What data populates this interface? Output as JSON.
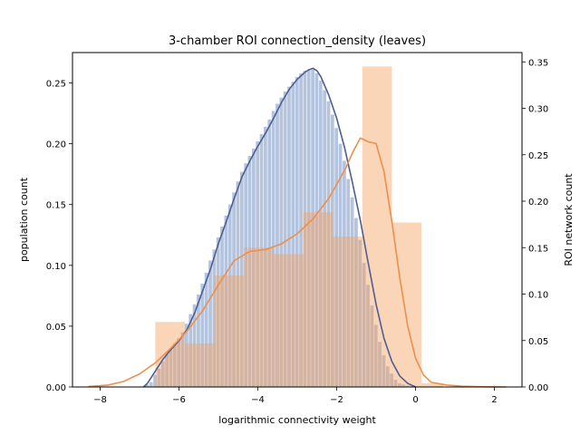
{
  "chart_data": {
    "type": "bar",
    "title": "3-chamber ROI connection_density (leaves)",
    "xlabel": "logarithmic connectivity weight",
    "ylabel": "population count",
    "y2label": "ROI network count",
    "xlim": [
      -8.7,
      2.7
    ],
    "ylim": [
      0,
      0.275
    ],
    "y2lim": [
      0,
      0.36
    ],
    "xticks": [
      -8,
      -6,
      -4,
      -2,
      0,
      2
    ],
    "xtick_labels": [
      "−8",
      "−6",
      "−4",
      "−2",
      "0",
      "2"
    ],
    "yticks": [
      0.0,
      0.05,
      0.1,
      0.15,
      0.2,
      0.25
    ],
    "ytick_labels": [
      "0.00",
      "0.05",
      "0.10",
      "0.15",
      "0.20",
      "0.25"
    ],
    "y2ticks": [
      0.0,
      0.05,
      0.1,
      0.15,
      0.2,
      0.25,
      0.3,
      0.35
    ],
    "y2tick_labels": [
      "0.00",
      "0.05",
      "0.10",
      "0.15",
      "0.20",
      "0.25",
      "0.30",
      "0.35"
    ],
    "grid": false,
    "colors": {
      "population_fill": "#4c72b0",
      "population_line": "#4c5f93",
      "roi_fill": "#f4a261",
      "roi_line": "#ee8f4b"
    },
    "series": [
      {
        "axis": "left",
        "kind": "histogram",
        "bin_edges": [
          -6.85,
          -6.75,
          -6.65,
          -6.55,
          -6.45,
          -6.35,
          -6.25,
          -6.15,
          -6.05,
          -5.95,
          -5.85,
          -5.75,
          -5.65,
          -5.55,
          -5.45,
          -5.35,
          -5.25,
          -5.15,
          -5.05,
          -4.95,
          -4.85,
          -4.75,
          -4.65,
          -4.55,
          -4.45,
          -4.35,
          -4.25,
          -4.15,
          -4.05,
          -3.95,
          -3.85,
          -3.75,
          -3.65,
          -3.55,
          -3.45,
          -3.35,
          -3.25,
          -3.15,
          -3.05,
          -2.95,
          -2.85,
          -2.75,
          -2.65,
          -2.55,
          -2.45,
          -2.35,
          -2.25,
          -2.15,
          -2.05,
          -1.95,
          -1.85,
          -1.75,
          -1.65,
          -1.55,
          -1.45,
          -1.35,
          -1.25,
          -1.15,
          -1.05,
          -0.95,
          -0.85,
          -0.75,
          -0.65,
          -0.55,
          -0.45,
          -0.35,
          -0.25,
          -0.15,
          -0.05
        ],
        "values": [
          0.002,
          0.004,
          0.01,
          0.015,
          0.021,
          0.027,
          0.032,
          0.036,
          0.04,
          0.045,
          0.052,
          0.06,
          0.068,
          0.076,
          0.085,
          0.094,
          0.104,
          0.113,
          0.123,
          0.132,
          0.141,
          0.15,
          0.16,
          0.169,
          0.177,
          0.184,
          0.19,
          0.196,
          0.202,
          0.208,
          0.214,
          0.22,
          0.227,
          0.233,
          0.238,
          0.243,
          0.247,
          0.251,
          0.255,
          0.258,
          0.26,
          0.261,
          0.261,
          0.258,
          0.252,
          0.244,
          0.235,
          0.224,
          0.213,
          0.2,
          0.186,
          0.171,
          0.156,
          0.139,
          0.121,
          0.102,
          0.084,
          0.067,
          0.051,
          0.037,
          0.026,
          0.017,
          0.011,
          0.006,
          0.003,
          0.002,
          0.001,
          0.0005
        ]
      },
      {
        "axis": "left",
        "kind": "kde",
        "x": [
          -6.9,
          -6.8,
          -6.7,
          -6.6,
          -6.5,
          -6.4,
          -6.2,
          -6.0,
          -5.8,
          -5.6,
          -5.4,
          -5.2,
          -5.0,
          -4.8,
          -4.6,
          -4.4,
          -4.2,
          -4.0,
          -3.8,
          -3.6,
          -3.4,
          -3.2,
          -3.0,
          -2.8,
          -2.7,
          -2.6,
          -2.5,
          -2.4,
          -2.2,
          -2.0,
          -1.8,
          -1.6,
          -1.4,
          -1.2,
          -1.0,
          -0.8,
          -0.6,
          -0.4,
          -0.2,
          0.0
        ],
        "y": [
          0.0,
          0.003,
          0.008,
          0.013,
          0.018,
          0.023,
          0.031,
          0.038,
          0.047,
          0.061,
          0.079,
          0.097,
          0.118,
          0.136,
          0.155,
          0.173,
          0.186,
          0.198,
          0.209,
          0.221,
          0.234,
          0.245,
          0.253,
          0.259,
          0.261,
          0.262,
          0.26,
          0.255,
          0.24,
          0.221,
          0.197,
          0.168,
          0.137,
          0.102,
          0.068,
          0.04,
          0.021,
          0.009,
          0.003,
          0.0
        ]
      },
      {
        "axis": "right",
        "kind": "histogram",
        "bin_edges": [
          -6.6,
          -5.85,
          -5.1,
          -4.35,
          -3.6,
          -2.85,
          -2.1,
          -1.35,
          -0.6,
          0.15,
          0.7
        ],
        "values": [
          0.07,
          0.047,
          0.12,
          0.15,
          0.143,
          0.188,
          0.162,
          0.345,
          0.177,
          0.004
        ]
      },
      {
        "axis": "right",
        "kind": "kde",
        "x": [
          -8.3,
          -7.8,
          -7.4,
          -7.0,
          -6.6,
          -6.2,
          -5.8,
          -5.4,
          -5.0,
          -4.6,
          -4.2,
          -3.8,
          -3.4,
          -3.0,
          -2.6,
          -2.2,
          -1.8,
          -1.6,
          -1.4,
          -1.2,
          -1.0,
          -0.8,
          -0.6,
          -0.4,
          -0.2,
          0.0,
          0.2,
          0.4,
          0.8,
          1.2,
          1.6,
          2.0,
          2.3
        ],
        "y": [
          0.0005,
          0.002,
          0.006,
          0.014,
          0.026,
          0.042,
          0.06,
          0.082,
          0.11,
          0.136,
          0.146,
          0.148,
          0.154,
          0.165,
          0.181,
          0.203,
          0.233,
          0.252,
          0.268,
          0.264,
          0.262,
          0.232,
          0.178,
          0.118,
          0.066,
          0.031,
          0.013,
          0.005,
          0.002,
          0.0008,
          0.0003,
          0.0001,
          0.0
        ]
      }
    ]
  }
}
